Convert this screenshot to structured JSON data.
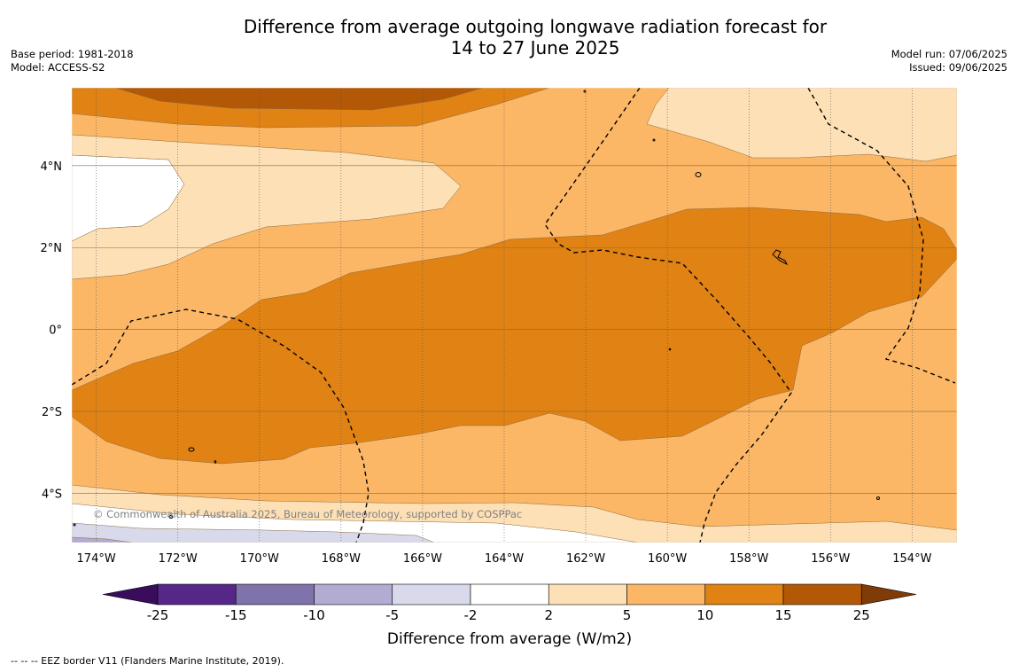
{
  "title": {
    "line1": "Difference from average outgoing longwave radiation forecast for",
    "line2": "14 to 27 June 2025"
  },
  "meta": {
    "base_period": "Base period: 1981-2018",
    "model": "Model: ACCESS-S2",
    "model_run": "Model run: 07/06/2025",
    "issued": "Issued: 09/06/2025"
  },
  "map": {
    "lon_range": [
      -174.6,
      -152.9
    ],
    "lat_range": [
      -5.2,
      5.9
    ],
    "lon_ticks": [
      {
        "value": -174,
        "label": "174°W"
      },
      {
        "value": -172,
        "label": "172°W"
      },
      {
        "value": -170,
        "label": "170°W"
      },
      {
        "value": -168,
        "label": "168°W"
      },
      {
        "value": -166,
        "label": "166°W"
      },
      {
        "value": -164,
        "label": "164°W"
      },
      {
        "value": -162,
        "label": "162°W"
      },
      {
        "value": -160,
        "label": "160°W"
      },
      {
        "value": -158,
        "label": "158°W"
      },
      {
        "value": -156,
        "label": "156°W"
      },
      {
        "value": -154,
        "label": "154°W"
      }
    ],
    "lat_ticks": [
      {
        "value": 4,
        "label": "4°N"
      },
      {
        "value": 2,
        "label": "2°N"
      },
      {
        "value": 0,
        "label": "0°"
      },
      {
        "value": -2,
        "label": "2°S"
      },
      {
        "value": -4,
        "label": "4°S"
      }
    ],
    "copyright": "© Commonwealth of Australia 2025, Bureau of Meteorology, supported by COSPPac"
  },
  "colorbar": {
    "label": "Difference from average (W/m2)",
    "boundaries": [
      "-25",
      "-15",
      "-10",
      "-5",
      "-2",
      "2",
      "5",
      "10",
      "15",
      "25"
    ],
    "colors": {
      "below_min": "#3a0d5c",
      "lt_-15": "#542788",
      "-15_-10": "#8073ac",
      "-10_-5": "#b2abd2",
      "-5_-2": "#d8daeb",
      "-2_2": "#ffffff",
      "2_5": "#fee0b6",
      "5_10": "#fbb766",
      "10_15": "#e08214",
      "15_25": "#b35806",
      "above_max": "#7f3b08"
    }
  },
  "footer": "--  --  -- EEZ border V11 (Flanders Marine Institute, 2019)."
}
